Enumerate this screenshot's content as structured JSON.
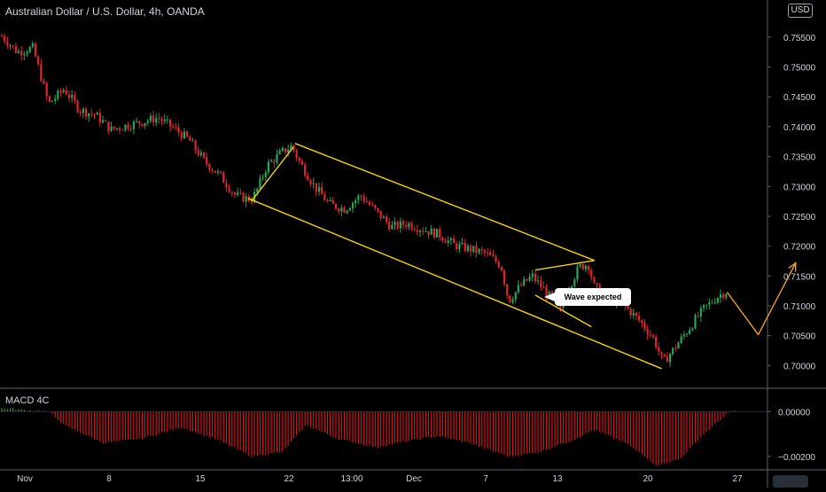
{
  "header": {
    "title": "Australian Dollar / U.S. Dollar, 4h, OANDA",
    "currency": "USD"
  },
  "macd": {
    "title": "MACD 4C"
  },
  "annotation": {
    "callout_text": "Wave expected"
  },
  "colors": {
    "background": "#000000",
    "up_candle": "#26a65b",
    "down_candle": "#e0262b",
    "channel": "#f5d300",
    "wave": "#f0a020",
    "macd_down": "#d0161a",
    "macd_up": "#2e9d2e",
    "text": "#d1d4dc"
  },
  "chart_data": [
    {
      "type": "candlestick",
      "title": "Australian Dollar / U.S. Dollar, 4h, OANDA",
      "x_tick_labels": [
        "Nov",
        "8",
        "15",
        "22",
        "13:00",
        "Dec",
        "7",
        "13",
        "20",
        "27"
      ],
      "y_ticks": [
        0.755,
        0.75,
        0.745,
        0.74,
        0.735,
        0.73,
        0.725,
        0.72,
        0.715,
        0.71,
        0.705,
        0.7
      ],
      "y_tick_labels": [
        "0.75500",
        "0.75000",
        "0.74500",
        "0.74000",
        "0.73500",
        "0.73000",
        "0.72500",
        "0.72000",
        "0.71500",
        "0.71000",
        "0.70500",
        "0.70000"
      ],
      "ylim": [
        0.6965,
        0.7575
      ],
      "close_path": [
        [
          0.0,
          0.7552
        ],
        [
          1.0,
          0.7525
        ],
        [
          2.0,
          0.7532
        ],
        [
          3.0,
          0.7438
        ],
        [
          4.0,
          0.7463
        ],
        [
          5.0,
          0.7428
        ],
        [
          6.0,
          0.742
        ],
        [
          7.0,
          0.7395
        ],
        [
          8.0,
          0.7402
        ],
        [
          9.0,
          0.7408
        ],
        [
          10.0,
          0.7415
        ],
        [
          11.0,
          0.7398
        ],
        [
          12.0,
          0.7378
        ],
        [
          13.0,
          0.7342
        ],
        [
          14.0,
          0.7318
        ],
        [
          15.0,
          0.7284
        ],
        [
          16.0,
          0.7278
        ],
        [
          16.3,
          0.729
        ],
        [
          17.0,
          0.7335
        ],
        [
          18.0,
          0.7358
        ],
        [
          18.6,
          0.7368
        ],
        [
          19.0,
          0.7345
        ],
        [
          20.0,
          0.7302
        ],
        [
          21.0,
          0.727
        ],
        [
          22.0,
          0.7262
        ],
        [
          23.0,
          0.7285
        ],
        [
          24.0,
          0.7258
        ],
        [
          25.0,
          0.7232
        ],
        [
          26.0,
          0.7238
        ],
        [
          27.0,
          0.7228
        ],
        [
          28.0,
          0.722
        ],
        [
          29.0,
          0.7202
        ],
        [
          30.0,
          0.7195
        ],
        [
          31.0,
          0.7188
        ],
        [
          32.0,
          0.7168
        ],
        [
          32.5,
          0.7108
        ],
        [
          33.2,
          0.7132
        ],
        [
          34.0,
          0.715
        ],
        [
          35.0,
          0.712
        ],
        [
          35.8,
          0.709
        ],
        [
          36.3,
          0.7128
        ],
        [
          37.0,
          0.7165
        ],
        [
          37.6,
          0.717
        ],
        [
          38.0,
          0.713
        ],
        [
          39.0,
          0.7115
        ],
        [
          40.0,
          0.7098
        ],
        [
          41.0,
          0.7072
        ],
        [
          41.8,
          0.7045
        ],
        [
          42.4,
          0.7005
        ],
        [
          43.0,
          0.7025
        ],
        [
          44.0,
          0.706
        ],
        [
          45.0,
          0.7095
        ],
        [
          46.0,
          0.7118
        ],
        [
          46.5,
          0.7125
        ]
      ],
      "drawings": {
        "channel_upper": [
          [
            18.8,
            0.7372
          ],
          [
            38.0,
            0.7176
          ]
        ],
        "channel_lower": [
          [
            15.8,
            0.728
          ],
          [
            42.3,
            0.6995
          ]
        ],
        "upswing_line": [
          [
            16.0,
            0.7275
          ],
          [
            18.7,
            0.7366
          ]
        ],
        "flag_upper": [
          [
            34.2,
            0.716
          ],
          [
            38.0,
            0.7176
          ]
        ],
        "flag_lower": [
          [
            34.2,
            0.7118
          ],
          [
            37.8,
            0.7065
          ]
        ],
        "expected_wave": [
          [
            46.5,
            0.7123
          ],
          [
            48.5,
            0.7052
          ],
          [
            50.9,
            0.7172
          ]
        ]
      }
    },
    {
      "type": "bar",
      "title": "MACD 4C",
      "y_ticks": [
        0.0,
        -0.002
      ],
      "y_tick_labels": [
        "0.00000",
        "−0.00200"
      ],
      "ylim": [
        -0.0026,
        0.00025
      ],
      "series_anchors": [
        [
          0.0,
          0.00015
        ],
        [
          3.0,
          0.0
        ],
        [
          4.0,
          -0.0006
        ],
        [
          6.5,
          -0.0014
        ],
        [
          9.0,
          -0.0012
        ],
        [
          11.5,
          -0.0007
        ],
        [
          14.0,
          -0.0013
        ],
        [
          16.0,
          -0.002
        ],
        [
          18.0,
          -0.0018
        ],
        [
          19.5,
          -0.0006
        ],
        [
          21.5,
          -0.0012
        ],
        [
          24.0,
          -0.0016
        ],
        [
          26.0,
          -0.0013
        ],
        [
          28.0,
          -0.0011
        ],
        [
          30.0,
          -0.0014
        ],
        [
          32.5,
          -0.002
        ],
        [
          34.5,
          -0.0018
        ],
        [
          36.5,
          -0.0013
        ],
        [
          38.0,
          -0.0008
        ],
        [
          40.0,
          -0.0014
        ],
        [
          42.0,
          -0.0024
        ],
        [
          43.5,
          -0.0021
        ],
        [
          45.0,
          -0.001
        ],
        [
          46.5,
          -0.0001
        ],
        [
          47.0,
          5e-05
        ]
      ]
    }
  ]
}
